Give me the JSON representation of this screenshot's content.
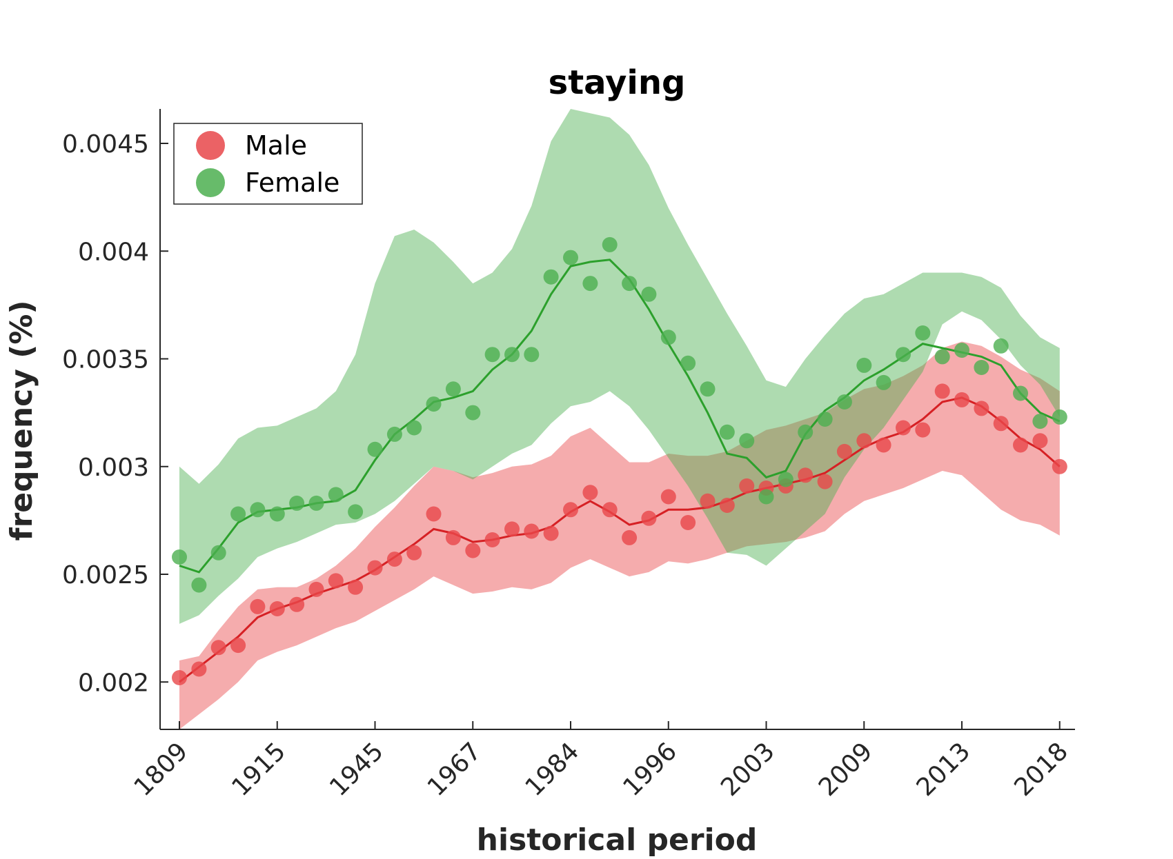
{
  "chart_data": {
    "type": "line",
    "title": "staying",
    "xlabel": "historical period",
    "ylabel": "frequency (%)",
    "x_tick_labels": [
      "1809",
      "1915",
      "1945",
      "1967",
      "1984",
      "1996",
      "2003",
      "2009",
      "2013",
      "2018"
    ],
    "x_tick_index": [
      0,
      5,
      10,
      15,
      20,
      25,
      30,
      35,
      40,
      45
    ],
    "y_ticks": [
      0.002,
      0.0025,
      0.003,
      0.0035,
      0.004,
      0.0045
    ],
    "y_tick_labels": [
      "0.002",
      "0.0025",
      "0.003",
      "0.0035",
      "0.004",
      "0.0045"
    ],
    "ylim": [
      0.00178,
      0.00466
    ],
    "xlim": [
      -1,
      46
    ],
    "legend": {
      "position": "top-left",
      "entries": [
        "Male",
        "Female"
      ]
    },
    "series": [
      {
        "name": "Male",
        "color": "#e8474a",
        "points": [
          0.00202,
          0.00206,
          0.00216,
          0.00217,
          0.00235,
          0.00234,
          0.00236,
          0.00243,
          0.00247,
          0.00244,
          0.00253,
          0.00257,
          0.0026,
          0.00278,
          0.00267,
          0.00261,
          0.00266,
          0.00271,
          0.0027,
          0.00269,
          0.0028,
          0.00288,
          0.0028,
          0.00267,
          0.00276,
          0.00286,
          0.00274,
          0.00284,
          0.00282,
          0.00291,
          0.0029,
          0.00291,
          0.00296,
          0.00293,
          0.00307,
          0.00312,
          0.0031,
          0.00318,
          0.00317,
          0.00335,
          0.00331,
          0.00327,
          0.0032,
          0.0031,
          0.00312,
          0.003
        ],
        "trend": [
          0.002,
          0.00207,
          0.00214,
          0.00221,
          0.0023,
          0.00234,
          0.00237,
          0.00241,
          0.00244,
          0.00247,
          0.00252,
          0.00258,
          0.00264,
          0.00271,
          0.00269,
          0.00265,
          0.00266,
          0.00268,
          0.00269,
          0.00272,
          0.00279,
          0.00284,
          0.00279,
          0.00273,
          0.00275,
          0.0028,
          0.0028,
          0.00281,
          0.00284,
          0.00288,
          0.0029,
          0.00292,
          0.00294,
          0.00297,
          0.00303,
          0.00309,
          0.00313,
          0.00316,
          0.00322,
          0.0033,
          0.00332,
          0.00328,
          0.00321,
          0.00313,
          0.00308,
          0.003
        ],
        "upper": [
          0.0021,
          0.00212,
          0.00224,
          0.00235,
          0.00243,
          0.00244,
          0.00244,
          0.00248,
          0.00254,
          0.00262,
          0.00272,
          0.00281,
          0.00291,
          0.003,
          0.00298,
          0.00295,
          0.00297,
          0.003,
          0.00301,
          0.00305,
          0.00314,
          0.00318,
          0.0031,
          0.00302,
          0.00302,
          0.00306,
          0.00305,
          0.00305,
          0.00307,
          0.00312,
          0.00317,
          0.00319,
          0.00322,
          0.00325,
          0.00331,
          0.00336,
          0.00338,
          0.00342,
          0.00347,
          0.00355,
          0.00358,
          0.00356,
          0.00351,
          0.00345,
          0.00341,
          0.00335
        ],
        "lower": [
          0.00178,
          0.00185,
          0.00192,
          0.002,
          0.0021,
          0.00214,
          0.00217,
          0.00221,
          0.00225,
          0.00228,
          0.00233,
          0.00238,
          0.00243,
          0.00249,
          0.00245,
          0.00241,
          0.00242,
          0.00244,
          0.00243,
          0.00246,
          0.00253,
          0.00257,
          0.00253,
          0.00249,
          0.00251,
          0.00256,
          0.00255,
          0.00257,
          0.0026,
          0.00263,
          0.00264,
          0.00265,
          0.00267,
          0.0027,
          0.00278,
          0.00284,
          0.00287,
          0.0029,
          0.00294,
          0.00298,
          0.00296,
          0.00288,
          0.0028,
          0.00275,
          0.00273,
          0.00268
        ]
      },
      {
        "name": "Female",
        "color": "#4caf50",
        "points": [
          0.00258,
          0.00245,
          0.0026,
          0.00278,
          0.0028,
          0.00278,
          0.00283,
          0.00283,
          0.00287,
          0.00279,
          0.00308,
          0.00315,
          0.00318,
          0.00329,
          0.00336,
          0.00325,
          0.00352,
          0.00352,
          0.00352,
          0.00388,
          0.00397,
          0.00385,
          0.00403,
          0.00385,
          0.0038,
          0.0036,
          0.00348,
          0.00336,
          0.00316,
          0.00312,
          0.00286,
          0.00294,
          0.00316,
          0.00322,
          0.0033,
          0.00347,
          0.00339,
          0.00352,
          0.00362,
          0.00351,
          0.00354,
          0.00346,
          0.00356,
          0.00334,
          0.00321,
          0.00323
        ],
        "trend": [
          0.00254,
          0.00251,
          0.00262,
          0.00274,
          0.00279,
          0.0028,
          0.00281,
          0.00283,
          0.00284,
          0.00289,
          0.00303,
          0.00315,
          0.00322,
          0.0033,
          0.00332,
          0.00335,
          0.00345,
          0.00352,
          0.00363,
          0.0038,
          0.00393,
          0.00395,
          0.00396,
          0.00387,
          0.00373,
          0.00357,
          0.00342,
          0.00325,
          0.00306,
          0.00304,
          0.00295,
          0.00298,
          0.00315,
          0.00326,
          0.00332,
          0.0034,
          0.00345,
          0.00351,
          0.00357,
          0.00355,
          0.00353,
          0.00351,
          0.00347,
          0.00334,
          0.00325,
          0.00321
        ],
        "upper": [
          0.003,
          0.00292,
          0.00301,
          0.00313,
          0.00318,
          0.00319,
          0.00323,
          0.00327,
          0.00335,
          0.00352,
          0.00385,
          0.00407,
          0.0041,
          0.00404,
          0.00395,
          0.00385,
          0.0039,
          0.00401,
          0.00421,
          0.00451,
          0.00466,
          0.00464,
          0.00462,
          0.00454,
          0.0044,
          0.0042,
          0.00403,
          0.00387,
          0.00371,
          0.00356,
          0.0034,
          0.00337,
          0.0035,
          0.00361,
          0.00371,
          0.00378,
          0.0038,
          0.00385,
          0.0039,
          0.0039,
          0.0039,
          0.00388,
          0.00383,
          0.0037,
          0.0036,
          0.00355
        ],
        "lower": [
          0.00227,
          0.00231,
          0.0024,
          0.00248,
          0.00258,
          0.00262,
          0.00265,
          0.00269,
          0.00273,
          0.00274,
          0.00278,
          0.00284,
          0.00292,
          0.003,
          0.00298,
          0.00294,
          0.003,
          0.00306,
          0.0031,
          0.0032,
          0.00328,
          0.0033,
          0.00335,
          0.00328,
          0.00317,
          0.00304,
          0.00291,
          0.00276,
          0.0026,
          0.00259,
          0.00254,
          0.00262,
          0.0027,
          0.00278,
          0.00295,
          0.00308,
          0.00318,
          0.00331,
          0.00344,
          0.00366,
          0.00372,
          0.00368,
          0.00359,
          0.00347,
          0.00338,
          0.00323
        ]
      }
    ]
  }
}
